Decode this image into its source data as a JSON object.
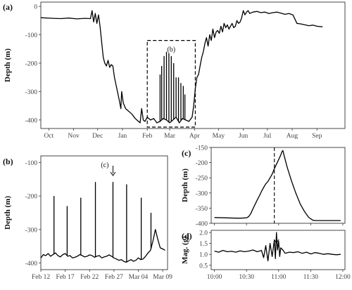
{
  "figure": {
    "panels": [
      {
        "label": "(a)"
      },
      {
        "label": "(b)"
      },
      {
        "label": "(c)"
      },
      {
        "label": "(d)"
      }
    ]
  },
  "chart_data": [
    {
      "id": "a",
      "panel_label": "(a)",
      "type": "line",
      "ylabel": "Depth (m)",
      "xlabel": "",
      "ylim": [
        -430,
        15
      ],
      "yticks": [
        0,
        -100,
        -200,
        -300,
        -400
      ],
      "xlim": [
        0,
        380
      ],
      "xticks": [
        {
          "v": 10,
          "label": "Oct"
        },
        {
          "v": 41,
          "label": "Nov"
        },
        {
          "v": 71,
          "label": "Dec"
        },
        {
          "v": 102,
          "label": "Jan"
        },
        {
          "v": 133,
          "label": "Feb"
        },
        {
          "v": 161,
          "label": "Mar"
        },
        {
          "v": 192,
          "label": "Apr"
        },
        {
          "v": 222,
          "label": "May"
        },
        {
          "v": 253,
          "label": "Jun"
        },
        {
          "v": 283,
          "label": "Jul"
        },
        {
          "v": 314,
          "label": "Aug"
        },
        {
          "v": 345,
          "label": "Sep"
        }
      ],
      "highlight_box_label": "(b)",
      "highlight_box": {
        "x": [
          133,
          193
        ],
        "y": [
          -425,
          -120
        ]
      },
      "series": [
        {
          "x": [
            0,
            15,
            25,
            35,
            45,
            55,
            62,
            64,
            66,
            68,
            70,
            72,
            74,
            78,
            80,
            82,
            84,
            86,
            88,
            90,
            92,
            95,
            98,
            100,
            101,
            103,
            106,
            110,
            114,
            118,
            122,
            124,
            126,
            128,
            130,
            133,
            137,
            141,
            145,
            149,
            153,
            157,
            161,
            165,
            169,
            173,
            177,
            181,
            185,
            189,
            191,
            193,
            195,
            197,
            199,
            201,
            203,
            205,
            207,
            209,
            211,
            213,
            215,
            217,
            219,
            221,
            223,
            225,
            227,
            229,
            231,
            233,
            235,
            237,
            239,
            241,
            243,
            245,
            247,
            249,
            251,
            253,
            255,
            257,
            259,
            261,
            265,
            270,
            275,
            280,
            285,
            290,
            295,
            300,
            305,
            310,
            315,
            320,
            325,
            330,
            335,
            340,
            345,
            352
          ],
          "y": [
            -40,
            -42,
            -43,
            -41,
            -44,
            -42,
            -43,
            -15,
            -55,
            -25,
            -60,
            -30,
            -70,
            -180,
            -200,
            -210,
            -190,
            -215,
            -205,
            -210,
            -250,
            -290,
            -330,
            -360,
            -300,
            -340,
            -360,
            -370,
            -380,
            -395,
            -405,
            -410,
            -360,
            -400,
            -405,
            -390,
            -400,
            -395,
            -410,
            -405,
            -395,
            -400,
            -410,
            -400,
            -390,
            -410,
            -395,
            -400,
            -405,
            -390,
            -350,
            -290,
            -250,
            -240,
            -210,
            -180,
            -160,
            -130,
            -110,
            -140,
            -100,
            -120,
            -80,
            -110,
            -90,
            -85,
            -95,
            -70,
            -90,
            -60,
            -75,
            -65,
            -80,
            -70,
            -60,
            -75,
            -70,
            -50,
            -60,
            -55,
            -40,
            -15,
            -30,
            -20,
            -15,
            -25,
            -20,
            -18,
            -22,
            -20,
            -25,
            -22,
            -20,
            -24,
            -28,
            -25,
            -30,
            -60,
            -62,
            -65,
            -68,
            -66,
            -70,
            -72
          ]
        }
      ],
      "spikes": [
        {
          "x": 149,
          "top": -240
        },
        {
          "x": 151,
          "top": -210
        },
        {
          "x": 154,
          "top": -175
        },
        {
          "x": 157,
          "top": -160
        },
        {
          "x": 160,
          "top": -165
        },
        {
          "x": 163,
          "top": -175
        },
        {
          "x": 166,
          "top": -200
        },
        {
          "x": 169,
          "top": -250
        },
        {
          "x": 172,
          "top": -250
        },
        {
          "x": 175,
          "top": -270
        },
        {
          "x": 178,
          "top": -280
        },
        {
          "x": 180,
          "top": -310
        }
      ]
    },
    {
      "id": "b",
      "panel_label": "(b)",
      "type": "line",
      "ylabel": "Depth (m)",
      "xlabel": "",
      "ylim": [
        -420,
        -80
      ],
      "yticks": [
        -100,
        -200,
        -300,
        -400
      ],
      "xlim": [
        0,
        26
      ],
      "xticks": [
        {
          "v": 0,
          "label": "Feb 12"
        },
        {
          "v": 5,
          "label": "Feb 17"
        },
        {
          "v": 10,
          "label": "Feb 22"
        },
        {
          "v": 15,
          "label": "Feb 27"
        },
        {
          "v": 20,
          "label": "Mar 04"
        },
        {
          "v": 25,
          "label": "Mar 09"
        }
      ],
      "annotation": {
        "label": "(c)",
        "x": 14.8
      },
      "series": [
        {
          "x": [
            0,
            0.5,
            1,
            1.5,
            2,
            2.5,
            3,
            3.5,
            4,
            4.5,
            5,
            5.5,
            6,
            6.5,
            7,
            7.5,
            8,
            8.5,
            9,
            9.5,
            10,
            10.5,
            11,
            11.5,
            12,
            12.5,
            13,
            13.5,
            14,
            14.5,
            15,
            15.5,
            16,
            16.5,
            17,
            17.5,
            18,
            18.5,
            19,
            19.5,
            20,
            20.5,
            21,
            21.5,
            22,
            22.5,
            23,
            23.5,
            24,
            24.5,
            25,
            25.5
          ],
          "y": [
            -385,
            -375,
            -378,
            -372,
            -380,
            -375,
            -370,
            -378,
            -382,
            -375,
            -372,
            -380,
            -378,
            -385,
            -383,
            -380,
            -375,
            -378,
            -382,
            -380,
            -376,
            -378,
            -383,
            -380,
            -378,
            -385,
            -382,
            -380,
            -376,
            -380,
            -385,
            -388,
            -392,
            -390,
            -395,
            -398,
            -394,
            -390,
            -395,
            -392,
            -385,
            -390,
            -388,
            -380,
            -370,
            -362,
            -335,
            -300,
            -330,
            -355,
            -358,
            -362
          ]
        }
      ],
      "spikes": [
        {
          "x": 2.7,
          "top": -200
        },
        {
          "x": 5.4,
          "top": -230
        },
        {
          "x": 8.2,
          "top": -205
        },
        {
          "x": 11.2,
          "top": -158
        },
        {
          "x": 14.8,
          "top": -158
        },
        {
          "x": 17.6,
          "top": -165
        },
        {
          "x": 20.6,
          "top": -205
        },
        {
          "x": 22.6,
          "top": -250
        }
      ]
    },
    {
      "id": "c",
      "panel_label": "(c)",
      "type": "line",
      "ylabel": "Depth (m)",
      "xlabel": "",
      "ylim": [
        -400,
        -150
      ],
      "yticks": [
        -150,
        -200,
        -250,
        -300,
        -350,
        -400
      ],
      "xlim": [
        -3,
        122
      ],
      "xticks": [
        {
          "v": 0,
          "label": ""
        },
        {
          "v": 30,
          "label": ""
        },
        {
          "v": 60,
          "label": ""
        },
        {
          "v": 90,
          "label": ""
        },
        {
          "v": 120,
          "label": ""
        }
      ],
      "vline_x": 56,
      "series": [
        {
          "x": [
            0,
            10,
            20,
            25,
            30,
            32,
            34,
            36,
            38,
            40,
            42,
            44,
            46,
            48,
            50,
            52,
            54,
            56,
            58,
            60,
            62,
            63,
            64,
            65,
            68,
            72,
            76,
            80,
            84,
            88,
            92,
            95,
            100,
            110,
            118
          ],
          "y": [
            -381,
            -382,
            -383,
            -383,
            -382,
            -378,
            -368,
            -352,
            -338,
            -323,
            -310,
            -295,
            -282,
            -270,
            -262,
            -250,
            -238,
            -220,
            -205,
            -190,
            -175,
            -165,
            -160,
            -175,
            -215,
            -260,
            -300,
            -335,
            -360,
            -380,
            -390,
            -391,
            -391,
            -391,
            -391
          ]
        }
      ]
    },
    {
      "id": "d",
      "panel_label": "(d)",
      "type": "line",
      "ylabel": "Mag. (g)",
      "xlabel": "",
      "ylim": [
        0.3,
        2.1
      ],
      "yticks": [
        0.5,
        1.0,
        1.5,
        2.0
      ],
      "ytick_labels": [
        "0.5",
        "1.0",
        "1.5",
        "2.0"
      ],
      "xlim": [
        -3,
        122
      ],
      "xticks": [
        {
          "v": 0,
          "label": "10:00"
        },
        {
          "v": 30,
          "label": "10:30"
        },
        {
          "v": 60,
          "label": "11:00"
        },
        {
          "v": 90,
          "label": "11:30"
        },
        {
          "v": 120,
          "label": "12:00"
        }
      ],
      "annotation": {
        "label": "",
        "x": 58
      },
      "series": [
        {
          "x": [
            0,
            4,
            8,
            12,
            16,
            20,
            24,
            28,
            32,
            36,
            40,
            44,
            46,
            48,
            50,
            52,
            54,
            56,
            57,
            58,
            59,
            60,
            61,
            62,
            64,
            66,
            70,
            74,
            78,
            82,
            86,
            90,
            94,
            98,
            102,
            106,
            110,
            114,
            118
          ],
          "y": [
            1.15,
            1.1,
            1.18,
            1.12,
            1.14,
            1.1,
            1.16,
            1.12,
            1.15,
            1.2,
            1.12,
            1.18,
            0.85,
            1.4,
            0.7,
            1.5,
            0.9,
            1.65,
            0.8,
            2.0,
            1.2,
            1.6,
            0.9,
            1.3,
            1.2,
            1.05,
            1.1,
            1.08,
            1.12,
            1.05,
            1.1,
            1.02,
            1.08,
            1.05,
            1.0,
            1.03,
            1.0,
            0.98,
            1.0
          ]
        }
      ]
    }
  ]
}
